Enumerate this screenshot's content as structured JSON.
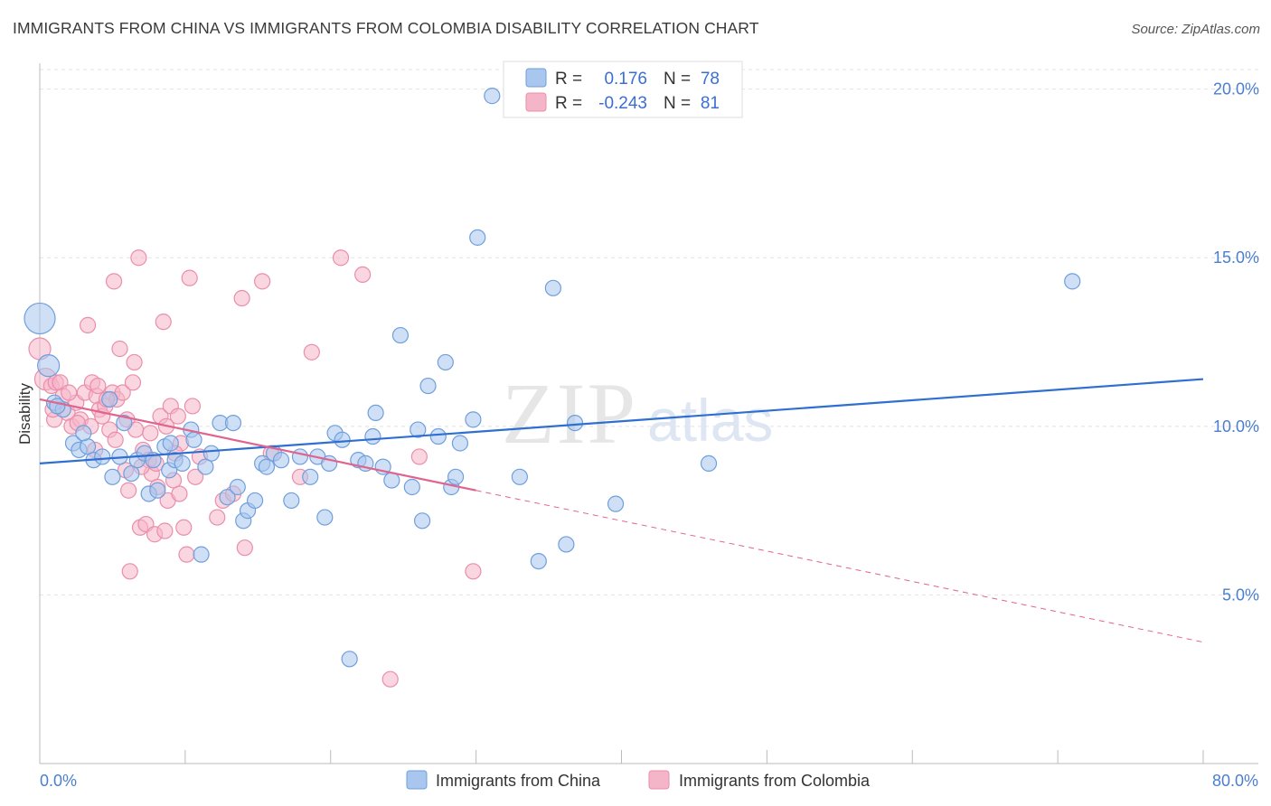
{
  "header": {
    "title": "IMMIGRANTS FROM CHINA VS IMMIGRANTS FROM COLOMBIA DISABILITY CORRELATION CHART",
    "source": "Source: ZipAtlas.com"
  },
  "watermark": {
    "part1": "ZIP",
    "part2": "atlas"
  },
  "colors": {
    "china_fill": "#a8c6ee",
    "china_stroke": "#6f9fdc",
    "china_line": "#2f6fd0",
    "colombia_fill": "#f5b5c8",
    "colombia_stroke": "#ea8eaa",
    "colombia_line": "#e0648e",
    "tick_text": "#4a7fd0",
    "grid": "#e3e3e3"
  },
  "legend": {
    "china": {
      "r_label": "R =",
      "r_value": "0.176",
      "n_label": "N =",
      "n_value": "78"
    },
    "colombia": {
      "r_label": "R =",
      "r_value": "-0.243",
      "n_label": "N =",
      "n_value": "81"
    }
  },
  "chart_data": {
    "type": "scatter",
    "title": "IMMIGRANTS FROM CHINA VS IMMIGRANTS FROM COLOMBIA DISABILITY CORRELATION CHART",
    "xlabel": "",
    "ylabel": "Disability",
    "xlim": [
      0,
      80
    ],
    "ylim": [
      0,
      20.5
    ],
    "x_tick_labels": [
      "0.0%",
      "80.0%"
    ],
    "y_ticks": [
      5,
      10,
      15,
      20
    ],
    "y_tick_labels": [
      "5.0%",
      "10.0%",
      "15.0%",
      "20.0%"
    ],
    "grid": true,
    "legend_position": "top-center",
    "series": [
      {
        "name": "Immigrants from China",
        "r": 0.176,
        "n": 78,
        "trend": {
          "x": [
            0,
            80
          ],
          "y": [
            8.9,
            11.4
          ],
          "style": "solid"
        },
        "points": [
          [
            0.0,
            13.2,
            3
          ],
          [
            0.6,
            11.8,
            2
          ],
          [
            1.0,
            10.7,
            1
          ],
          [
            1.6,
            10.5,
            1
          ],
          [
            2.3,
            9.5,
            1
          ],
          [
            2.7,
            9.3,
            1
          ],
          [
            3.3,
            9.4,
            1
          ],
          [
            3.7,
            9.0,
            1
          ],
          [
            4.3,
            9.1,
            1
          ],
          [
            4.8,
            10.8,
            1
          ],
          [
            5.0,
            8.5,
            1
          ],
          [
            5.5,
            9.1,
            1
          ],
          [
            5.8,
            10.1,
            1
          ],
          [
            6.3,
            8.6,
            1
          ],
          [
            6.7,
            9.0,
            1
          ],
          [
            7.2,
            9.2,
            1
          ],
          [
            7.5,
            8.0,
            1
          ],
          [
            7.8,
            9.0,
            1
          ],
          [
            8.1,
            8.1,
            1
          ],
          [
            8.6,
            9.4,
            1
          ],
          [
            8.9,
            8.7,
            1
          ],
          [
            9.3,
            9.0,
            1
          ],
          [
            9.8,
            8.9,
            1
          ],
          [
            10.4,
            9.9,
            1
          ],
          [
            10.6,
            9.6,
            1
          ],
          [
            11.1,
            6.2,
            1
          ],
          [
            11.4,
            8.8,
            1
          ],
          [
            11.8,
            9.2,
            1
          ],
          [
            12.4,
            10.1,
            1
          ],
          [
            12.9,
            7.9,
            1
          ],
          [
            13.3,
            10.1,
            1
          ],
          [
            13.6,
            8.2,
            1
          ],
          [
            14.0,
            7.2,
            1
          ],
          [
            14.3,
            7.5,
            1
          ],
          [
            14.8,
            7.8,
            1
          ],
          [
            15.3,
            8.9,
            1
          ],
          [
            15.6,
            8.8,
            1
          ],
          [
            16.1,
            9.2,
            1
          ],
          [
            16.6,
            9.0,
            1
          ],
          [
            17.3,
            7.8,
            1
          ],
          [
            17.9,
            9.1,
            1
          ],
          [
            18.6,
            8.5,
            1
          ],
          [
            19.1,
            9.1,
            1
          ],
          [
            19.6,
            7.3,
            1
          ],
          [
            19.9,
            8.9,
            1
          ],
          [
            20.3,
            9.8,
            1
          ],
          [
            20.8,
            9.6,
            1
          ],
          [
            21.3,
            3.1,
            1
          ],
          [
            21.9,
            9.0,
            1
          ],
          [
            22.4,
            8.9,
            1
          ],
          [
            22.9,
            9.7,
            1
          ],
          [
            23.1,
            10.4,
            1
          ],
          [
            23.6,
            8.8,
            1
          ],
          [
            24.2,
            8.4,
            1
          ],
          [
            24.8,
            12.7,
            1
          ],
          [
            25.6,
            8.2,
            1
          ],
          [
            26.0,
            9.9,
            1
          ],
          [
            26.3,
            7.2,
            1
          ],
          [
            26.7,
            11.2,
            1
          ],
          [
            27.4,
            9.7,
            1
          ],
          [
            27.9,
            11.9,
            1
          ],
          [
            28.3,
            8.2,
            1
          ],
          [
            28.9,
            9.5,
            1
          ],
          [
            29.8,
            10.2,
            1
          ],
          [
            28.6,
            8.5,
            1
          ],
          [
            30.1,
            15.6,
            1
          ],
          [
            31.1,
            19.8,
            1
          ],
          [
            33.0,
            8.5,
            1
          ],
          [
            34.3,
            6.0,
            1
          ],
          [
            35.3,
            14.1,
            1
          ],
          [
            36.2,
            6.5,
            1
          ],
          [
            36.8,
            10.1,
            1
          ],
          [
            39.6,
            7.7,
            1
          ],
          [
            46.0,
            8.9,
            1
          ],
          [
            71.0,
            14.3,
            1
          ],
          [
            3.0,
            9.8,
            1
          ],
          [
            9.0,
            9.5,
            1
          ],
          [
            1.2,
            10.6,
            1
          ]
        ]
      },
      {
        "name": "Immigrants from Colombia",
        "r": -0.243,
        "n": 81,
        "trend": {
          "x": [
            0,
            30
          ],
          "y": [
            10.8,
            8.1
          ],
          "style": "solid",
          "extended": {
            "x": [
              30,
              80
            ],
            "y": [
              8.1,
              3.6
            ],
            "style": "dashed"
          }
        },
        "points": [
          [
            0.0,
            12.3,
            2
          ],
          [
            0.4,
            11.4,
            2
          ],
          [
            0.8,
            11.2,
            1
          ],
          [
            1.1,
            11.3,
            1
          ],
          [
            1.4,
            11.3,
            1
          ],
          [
            1.6,
            10.9,
            1
          ],
          [
            1.9,
            10.4,
            1
          ],
          [
            2.2,
            10.0,
            1
          ],
          [
            2.5,
            10.7,
            1
          ],
          [
            2.8,
            10.2,
            1
          ],
          [
            3.1,
            11.0,
            1
          ],
          [
            3.3,
            13.0,
            1
          ],
          [
            3.6,
            11.3,
            1
          ],
          [
            3.9,
            10.9,
            1
          ],
          [
            4.1,
            10.5,
            1
          ],
          [
            4.3,
            10.3,
            1
          ],
          [
            4.5,
            10.6,
            1
          ],
          [
            4.8,
            9.9,
            1
          ],
          [
            5.0,
            11.0,
            1
          ],
          [
            5.1,
            14.3,
            1
          ],
          [
            5.3,
            10.8,
            1
          ],
          [
            5.5,
            12.3,
            1
          ],
          [
            5.7,
            11.0,
            1
          ],
          [
            6.0,
            10.2,
            1
          ],
          [
            6.2,
            5.7,
            1
          ],
          [
            6.4,
            11.3,
            1
          ],
          [
            6.5,
            11.9,
            1
          ],
          [
            6.8,
            15.0,
            1
          ],
          [
            6.9,
            7.0,
            1
          ],
          [
            7.1,
            9.3,
            1
          ],
          [
            7.3,
            7.1,
            1
          ],
          [
            7.5,
            9.0,
            1
          ],
          [
            7.7,
            8.6,
            1
          ],
          [
            7.9,
            6.8,
            1
          ],
          [
            8.1,
            8.2,
            1
          ],
          [
            8.3,
            10.3,
            1
          ],
          [
            8.5,
            13.1,
            1
          ],
          [
            8.6,
            6.9,
            1
          ],
          [
            8.8,
            7.8,
            1
          ],
          [
            9.0,
            10.6,
            1
          ],
          [
            9.2,
            8.4,
            1
          ],
          [
            9.5,
            10.3,
            1
          ],
          [
            9.7,
            9.5,
            1
          ],
          [
            9.9,
            7.0,
            1
          ],
          [
            10.1,
            6.2,
            1
          ],
          [
            10.3,
            14.4,
            1
          ],
          [
            10.5,
            10.6,
            1
          ],
          [
            10.7,
            8.5,
            1
          ],
          [
            13.9,
            13.8,
            1
          ],
          [
            12.2,
            7.3,
            1
          ],
          [
            14.1,
            6.4,
            1
          ],
          [
            15.3,
            14.3,
            1
          ],
          [
            17.9,
            8.5,
            1
          ],
          [
            18.7,
            12.2,
            1
          ],
          [
            20.7,
            15.0,
            1
          ],
          [
            22.2,
            14.5,
            1
          ],
          [
            24.1,
            2.5,
            1
          ],
          [
            26.1,
            9.1,
            1
          ],
          [
            29.8,
            5.7,
            1
          ],
          [
            1.0,
            10.2,
            1
          ],
          [
            2.0,
            11.0,
            1
          ],
          [
            3.5,
            10.0,
            1
          ],
          [
            4.0,
            11.2,
            1
          ],
          [
            5.2,
            9.6,
            1
          ],
          [
            5.9,
            8.7,
            1
          ],
          [
            6.6,
            9.9,
            1
          ],
          [
            7.6,
            9.8,
            1
          ],
          [
            8.0,
            8.9,
            1
          ],
          [
            8.7,
            10.0,
            1
          ],
          [
            9.3,
            9.2,
            1
          ],
          [
            9.6,
            8.0,
            1
          ],
          [
            12.6,
            7.8,
            1
          ],
          [
            15.9,
            9.2,
            1
          ],
          [
            2.6,
            10.1,
            1
          ],
          [
            3.8,
            9.3,
            1
          ],
          [
            4.6,
            10.8,
            1
          ],
          [
            6.1,
            8.1,
            1
          ],
          [
            7.0,
            8.8,
            1
          ],
          [
            11.0,
            9.1,
            1
          ],
          [
            13.3,
            8.0,
            1
          ],
          [
            0.9,
            10.5,
            1
          ]
        ]
      }
    ],
    "bottom_legend": [
      "Immigrants from China",
      "Immigrants from Colombia"
    ]
  }
}
